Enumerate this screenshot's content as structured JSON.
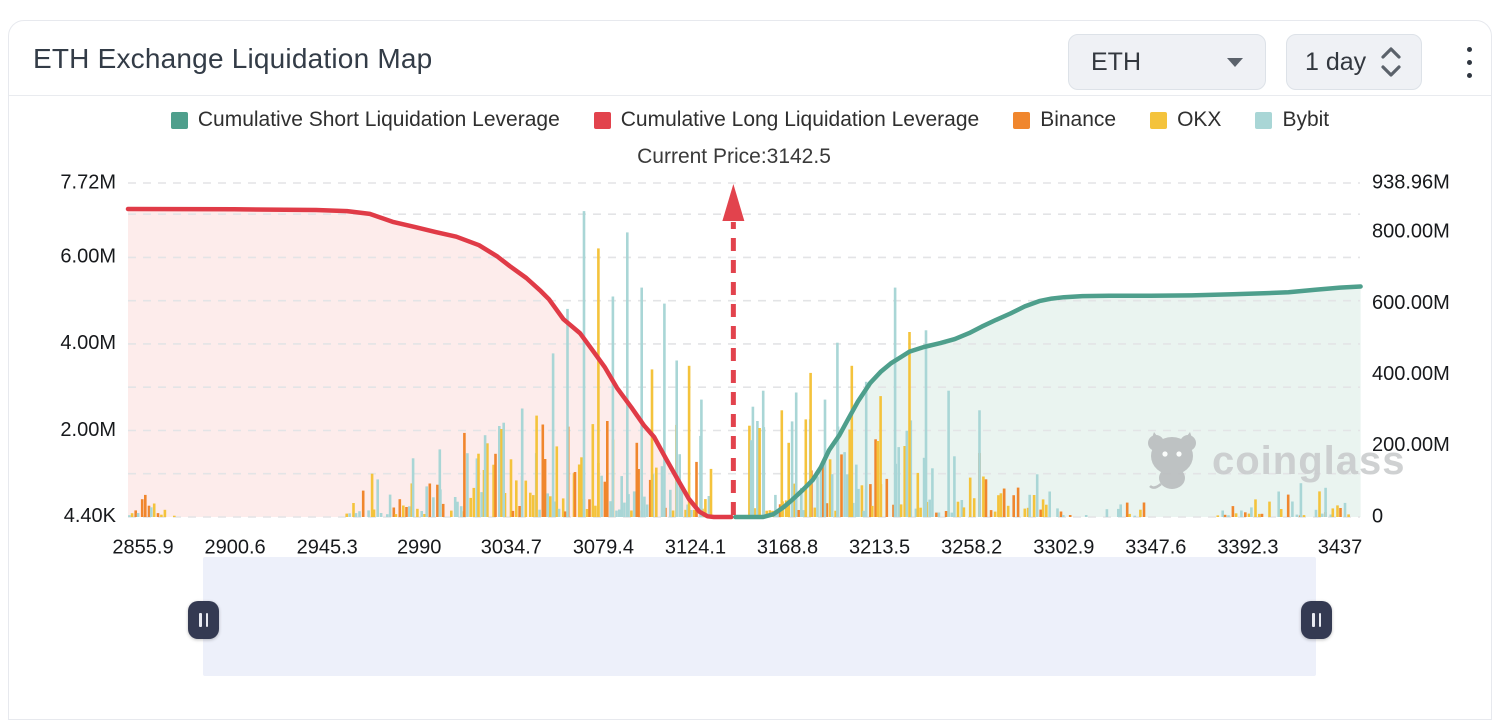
{
  "header": {
    "title": "ETH Exchange Liquidation Map",
    "symbol_select": {
      "value": "ETH"
    },
    "interval_stepper": {
      "value": "1 day"
    }
  },
  "legend": {
    "items": [
      {
        "label": "Cumulative Short Liquidation Leverage",
        "color": "#4e9f8c"
      },
      {
        "label": "Cumulative Long Liquidation Leverage",
        "color": "#e2434d"
      },
      {
        "label": "Binance",
        "color": "#f0862d"
      },
      {
        "label": "OKX",
        "color": "#f4c33c"
      },
      {
        "label": "Bybit",
        "color": "#a9d6d6"
      }
    ]
  },
  "annotations": {
    "current_price_label": "Current Price:3142.5"
  },
  "watermark": {
    "text": "coinglass"
  },
  "chart_data": {
    "type": "bar",
    "subtype": "liquidation-map: exchange liquidation histogram (right axis) + cumulative leverage area lines",
    "title": "ETH Exchange Liquidation Map",
    "current_price": 3142.5,
    "x_range": [
      2855.9,
      3437
    ],
    "x_ticks": [
      2855.9,
      2900.6,
      2945.3,
      2990,
      3034.7,
      3079.4,
      3124.1,
      3168.8,
      3213.5,
      3258.2,
      3302.9,
      3347.6,
      3392.3,
      3437
    ],
    "left_axis": {
      "labels": [
        "7.72M",
        "6.00M",
        "4.00M",
        "2.00M",
        "4.40K"
      ],
      "values": [
        7720000,
        6000000,
        4000000,
        2000000,
        4400
      ],
      "max": 7720000
    },
    "right_axis": {
      "labels": [
        "938.96M",
        "800.00M",
        "600.00M",
        "400.00M",
        "200.00M",
        "0"
      ],
      "values": [
        938.96,
        800,
        600,
        400,
        200,
        0
      ],
      "max": 938.96
    },
    "grid": {
      "left_axis_step": 1000000,
      "style": "dashed"
    },
    "series": [
      {
        "name": "Cumulative Long Liquidation Leverage",
        "axis": "right",
        "color": "#e03b47",
        "fill": "#fdeceb",
        "points": [
          [
            2848.6,
            866
          ],
          [
            2900,
            865
          ],
          [
            2940,
            863
          ],
          [
            2955,
            860
          ],
          [
            2966,
            852
          ],
          [
            2977,
            830
          ],
          [
            2988,
            815
          ],
          [
            2998,
            801
          ],
          [
            3008,
            788
          ],
          [
            3019,
            764
          ],
          [
            3028,
            732
          ],
          [
            3034,
            705
          ],
          [
            3042,
            672
          ],
          [
            3049,
            635
          ],
          [
            3053,
            612
          ],
          [
            3060,
            556
          ],
          [
            3068,
            517
          ],
          [
            3075,
            462
          ],
          [
            3080,
            422
          ],
          [
            3086,
            363
          ],
          [
            3093,
            308
          ],
          [
            3099,
            258
          ],
          [
            3104,
            225
          ],
          [
            3110,
            162
          ],
          [
            3116,
            100
          ],
          [
            3121,
            50
          ],
          [
            3126,
            15
          ],
          [
            3130,
            2
          ],
          [
            3133,
            0
          ],
          [
            3141.5,
            0
          ]
        ]
      },
      {
        "name": "Cumulative Short Liquidation Leverage",
        "axis": "right",
        "color": "#4e9f8c",
        "fill": "#eaf4f0",
        "points": [
          [
            3143.5,
            0
          ],
          [
            3157,
            0
          ],
          [
            3162,
            8
          ],
          [
            3167,
            28
          ],
          [
            3171,
            48
          ],
          [
            3176,
            75
          ],
          [
            3181,
            104
          ],
          [
            3185,
            140
          ],
          [
            3189,
            188
          ],
          [
            3194,
            230
          ],
          [
            3198,
            273
          ],
          [
            3203,
            325
          ],
          [
            3209,
            377
          ],
          [
            3214,
            408
          ],
          [
            3219,
            432
          ],
          [
            3224,
            450
          ],
          [
            3228,
            465
          ],
          [
            3235,
            478
          ],
          [
            3243,
            489
          ],
          [
            3250,
            500
          ],
          [
            3257,
            517
          ],
          [
            3263,
            535
          ],
          [
            3270,
            554
          ],
          [
            3277,
            572
          ],
          [
            3284,
            592
          ],
          [
            3291,
            607
          ],
          [
            3297,
            614
          ],
          [
            3303,
            618
          ],
          [
            3312,
            621
          ],
          [
            3325,
            622
          ],
          [
            3345,
            622
          ],
          [
            3365,
            623
          ],
          [
            3385,
            626
          ],
          [
            3400,
            629
          ],
          [
            3412,
            632
          ],
          [
            3425,
            639
          ],
          [
            3437,
            645
          ],
          [
            3447,
            648
          ]
        ]
      }
    ],
    "bars": {
      "axis": "right",
      "exchanges": [
        {
          "name": "Binance",
          "color": "#f0862d",
          "weight": 0.25
        },
        {
          "name": "OKX",
          "color": "#f4c33c",
          "weight": 0.35
        },
        {
          "name": "Bybit",
          "color": "#a9d6d6",
          "weight": 0.4
        }
      ],
      "seed": 1337,
      "regions": [
        {
          "from": 2849,
          "to": 2872,
          "step": 1.6,
          "max": 58,
          "density": 0.75
        },
        {
          "from": 2955,
          "to": 3012,
          "step": 1.5,
          "max": 130,
          "density": 0.85
        },
        {
          "from": 3012,
          "to": 3066,
          "step": 1.4,
          "max": 260,
          "density": 0.92
        },
        {
          "from": 3066,
          "to": 3133,
          "step": 1.4,
          "max": 300,
          "density": 0.95
        },
        {
          "from": 3150,
          "to": 3232,
          "step": 1.4,
          "max": 290,
          "density": 0.93
        },
        {
          "from": 3232,
          "to": 3274,
          "step": 1.5,
          "max": 200,
          "density": 0.85
        },
        {
          "from": 3274,
          "to": 3307,
          "step": 1.6,
          "max": 90,
          "density": 0.8
        },
        {
          "from": 3309,
          "to": 3342,
          "step": 2.2,
          "max": 45,
          "density": 0.5
        },
        {
          "from": 3378,
          "to": 3443,
          "step": 1.8,
          "max": 75,
          "density": 0.7
        }
      ],
      "spikes": [
        [
          2857,
          62,
          "Binance"
        ],
        [
          2987,
          165,
          "Bybit"
        ],
        [
          3000,
          190,
          "Bybit"
        ],
        [
          3022,
          230,
          "Bybit"
        ],
        [
          3031,
          265,
          "Bybit"
        ],
        [
          3040,
          305,
          "Bybit"
        ],
        [
          3047,
          285,
          "OKX"
        ],
        [
          3055,
          460,
          "Bybit"
        ],
        [
          3062,
          585,
          "Bybit"
        ],
        [
          3070,
          860,
          "Bybit"
        ],
        [
          3077,
          755,
          "OKX"
        ],
        [
          3084,
          620,
          "Bybit"
        ],
        [
          3091,
          800,
          "Bybit"
        ],
        [
          3098,
          645,
          "Bybit"
        ],
        [
          3103,
          415,
          "OKX"
        ],
        [
          3109,
          600,
          "Bybit"
        ],
        [
          3115,
          440,
          "Bybit"
        ],
        [
          3121,
          425,
          "OKX"
        ],
        [
          3127,
          330,
          "Bybit"
        ],
        [
          3152,
          310,
          "Bybit"
        ],
        [
          3157,
          355,
          "Bybit"
        ],
        [
          3166,
          300,
          "OKX"
        ],
        [
          3173,
          350,
          "Bybit"
        ],
        [
          3180,
          405,
          "OKX"
        ],
        [
          3187,
          330,
          "Bybit"
        ],
        [
          3193,
          490,
          "Bybit"
        ],
        [
          3200,
          425,
          "OKX"
        ],
        [
          3207,
          380,
          "Bybit"
        ],
        [
          3214,
          340,
          "OKX"
        ],
        [
          3221,
          645,
          "Bybit"
        ],
        [
          3228,
          520,
          "OKX"
        ],
        [
          3236,
          525,
          "Bybit"
        ],
        [
          3247,
          355,
          "Bybit"
        ],
        [
          3262,
          300,
          "Bybit"
        ],
        [
          3290,
          120,
          "Bybit"
        ],
        [
          3418,
          95,
          "Bybit"
        ],
        [
          3430,
          82,
          "Bybit"
        ]
      ]
    },
    "legend_position": "top",
    "colors": {
      "long": "#e03b47",
      "short": "#4e9f8c",
      "arrow": "#e2434d"
    }
  }
}
